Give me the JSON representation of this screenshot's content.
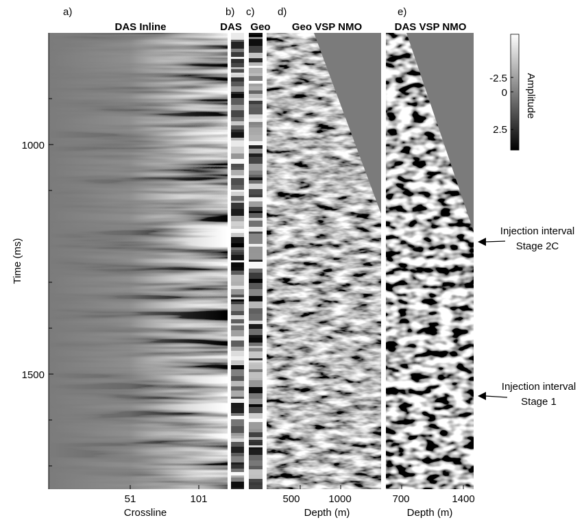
{
  "panels": {
    "a": {
      "letter": "a)",
      "title": "DAS Inline",
      "xlabel": "Crossline",
      "xticks": [
        "51",
        "101"
      ]
    },
    "b": {
      "letter": "b)",
      "title": "DAS"
    },
    "c": {
      "letter": "c)",
      "title": "Geo"
    },
    "d": {
      "letter": "d)",
      "title": "Geo VSP NMO",
      "xlabel": "Depth (m)",
      "xticks": [
        "500",
        "1000"
      ]
    },
    "e": {
      "letter": "e)",
      "title": "DAS VSP NMO",
      "xlabel": "Depth (m)",
      "xticks": [
        "700",
        "1400"
      ]
    }
  },
  "yaxis": {
    "label": "Time (ms)",
    "ticks": [
      "1000",
      "1500"
    ],
    "range_ms": [
      800,
      1800
    ]
  },
  "colorbar": {
    "label": "Amplitude",
    "ticks": [
      "-2.5",
      "0",
      "2.5"
    ],
    "range": [
      -4,
      4
    ],
    "colors": {
      "low": "#ffffff",
      "high": "#000000"
    }
  },
  "annotations": [
    {
      "line1": "Injection interval",
      "line2": "Stage 2C",
      "time_ms": 1220
    },
    {
      "line1": "Injection interval",
      "line2": "Stage 1",
      "time_ms": 1545
    }
  ],
  "colors": {
    "background_gray": "#7b7b7b"
  }
}
